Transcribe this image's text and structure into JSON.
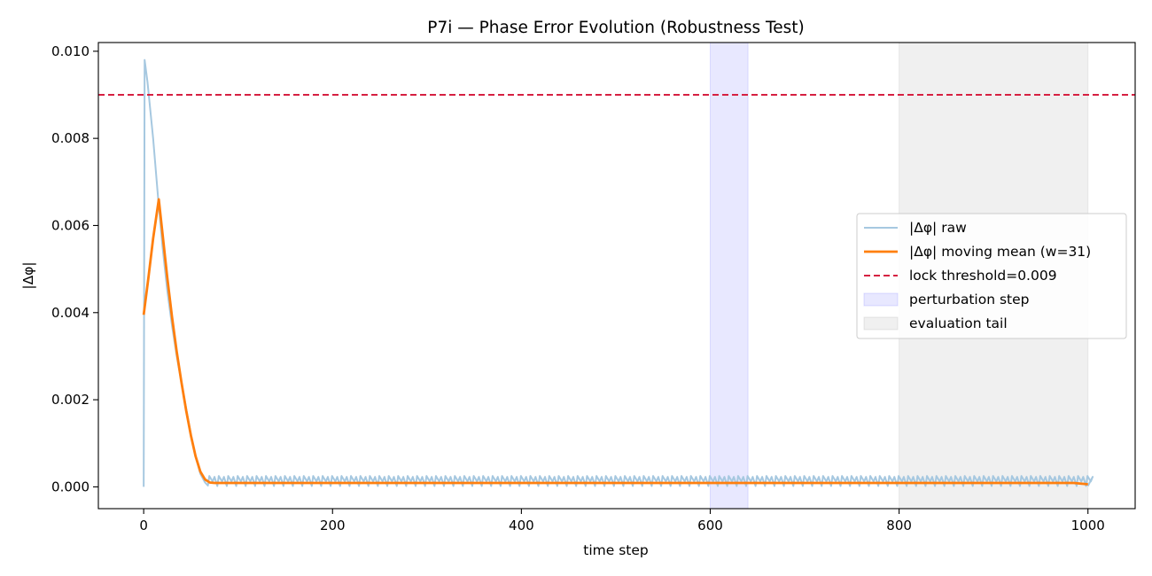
{
  "chart_data": {
    "type": "line",
    "title": "P7i — Phase Error Evolution (Robustness Test)",
    "xlabel": "time step",
    "ylabel": "|Δφ|",
    "xlim": [
      -48,
      1050
    ],
    "ylim": [
      -0.0005,
      0.0102
    ],
    "x_ticks": [
      0,
      200,
      400,
      600,
      800,
      1000
    ],
    "y_ticks": [
      0.0,
      0.002,
      0.004,
      0.006,
      0.008,
      0.01
    ],
    "x_tick_labels": [
      "0",
      "200",
      "400",
      "600",
      "800",
      "1000"
    ],
    "y_tick_labels": [
      "0.000",
      "0.002",
      "0.004",
      "0.006",
      "0.008",
      "0.010"
    ],
    "grid": false,
    "legend_position": "center-right",
    "series": [
      {
        "name": "|Δφ| raw",
        "color": "#a6c8e0",
        "style": "solid",
        "decay_points": [
          [
            0,
            0.0
          ],
          [
            1,
            0.0098
          ],
          [
            4,
            0.0093
          ],
          [
            10,
            0.008
          ],
          [
            15,
            0.0067
          ],
          [
            20,
            0.0055
          ],
          [
            25,
            0.0045
          ],
          [
            30,
            0.0037
          ],
          [
            35,
            0.003
          ],
          [
            40,
            0.0024
          ],
          [
            45,
            0.0018
          ],
          [
            50,
            0.0012
          ],
          [
            55,
            0.0007
          ],
          [
            60,
            0.0003
          ],
          [
            65,
            0.0001
          ],
          [
            68,
            3e-05
          ]
        ],
        "steady": {
          "start": 68,
          "end": 1000,
          "period": 10,
          "low": 2e-05,
          "high": 0.00025
        }
      },
      {
        "name": "|Δφ| moving mean (w=31)",
        "color": "#ff7f0e",
        "style": "solid",
        "points": [
          [
            0,
            0.00395
          ],
          [
            5,
            0.0048
          ],
          [
            10,
            0.0057
          ],
          [
            16,
            0.0066
          ],
          [
            20,
            0.0058
          ],
          [
            25,
            0.0048
          ],
          [
            30,
            0.0039
          ],
          [
            35,
            0.0031
          ],
          [
            40,
            0.0024
          ],
          [
            45,
            0.00175
          ],
          [
            50,
            0.00118
          ],
          [
            55,
            0.0007
          ],
          [
            60,
            0.00035
          ],
          [
            65,
            0.00017
          ],
          [
            70,
            0.0001
          ],
          [
            75,
            9e-05
          ],
          [
            100,
            9e-05
          ],
          [
            300,
            9e-05
          ],
          [
            600,
            9e-05
          ],
          [
            800,
            9e-05
          ],
          [
            985,
            9e-05
          ],
          [
            1000,
            6e-05
          ]
        ]
      }
    ],
    "threshold": {
      "name": "lock threshold=0.009",
      "value": 0.009,
      "color": "#d62041",
      "style": "dashed"
    },
    "spans": [
      {
        "name": "perturbation step",
        "start": 600,
        "end": 640,
        "color": "#0000ff",
        "opacity": 0.09
      },
      {
        "name": "evaluation tail",
        "start": 800,
        "end": 1000,
        "color": "#808080",
        "opacity": 0.12
      }
    ]
  }
}
